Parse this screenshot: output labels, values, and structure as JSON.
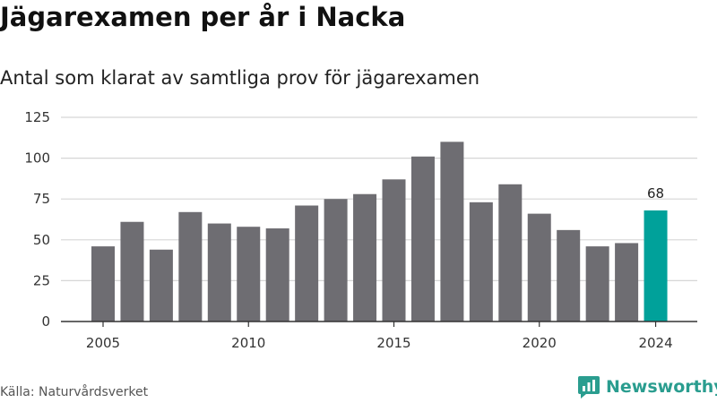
{
  "header": {
    "title": "Jägarexamen per år i Nacka",
    "subtitle": "Antal som klarat av samtliga prov för jägarexamen"
  },
  "footer": {
    "source": "Källa: Naturvårdsverket",
    "brand": "Newsworthy"
  },
  "colors": {
    "bar": "#6e6d72",
    "highlight": "#00a19a",
    "grid": "#d6d6d6",
    "axis": "#333333",
    "brand": "#2a9d8f"
  },
  "chart_data": {
    "type": "bar",
    "x": [
      2005,
      2006,
      2007,
      2008,
      2009,
      2010,
      2011,
      2012,
      2013,
      2014,
      2015,
      2016,
      2017,
      2018,
      2019,
      2020,
      2021,
      2022,
      2023,
      2024
    ],
    "values": [
      46,
      61,
      44,
      67,
      60,
      58,
      57,
      71,
      75,
      78,
      87,
      101,
      110,
      73,
      84,
      66,
      56,
      46,
      48,
      68
    ],
    "highlight_index": 19,
    "annotation": {
      "x": 2024,
      "text": "68"
    },
    "x_ticks": [
      "2005",
      "2010",
      "2015",
      "2020",
      "2024"
    ],
    "y_ticks": [
      0,
      25,
      50,
      75,
      100,
      125
    ],
    "ylim": [
      0,
      125
    ],
    "grid": true,
    "title": "Jägarexamen per år i Nacka",
    "xlabel": "",
    "ylabel": ""
  }
}
